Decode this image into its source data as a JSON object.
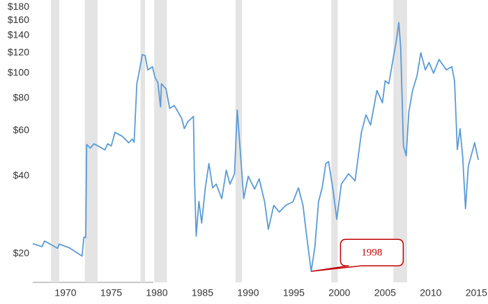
{
  "chart_data": {
    "type": "line",
    "log_scale_y": true,
    "grid": false,
    "xlim": [
      1967.6,
      2016.7
    ],
    "ylim": [
      15.5,
      192
    ],
    "xticks": [
      1970,
      1975,
      1980,
      1985,
      1990,
      1995,
      2000,
      2005,
      2010,
      2015
    ],
    "yticks": [
      {
        "value": 20,
        "label": "$20"
      },
      {
        "value": 40,
        "label": "$40"
      },
      {
        "value": 60,
        "label": "$60"
      },
      {
        "value": 80,
        "label": "$80"
      },
      {
        "value": 100,
        "label": "$100"
      },
      {
        "value": 120,
        "label": "$120"
      },
      {
        "value": 140,
        "label": "$140"
      },
      {
        "value": 160,
        "label": "$160"
      },
      {
        "value": 180,
        "label": "$180"
      }
    ],
    "shaded_periods": [
      [
        1969.6,
        1970.5
      ],
      [
        1973.3,
        1974.7
      ],
      [
        1979.4,
        1979.9
      ],
      [
        1980.9,
        1982.3
      ],
      [
        1989.8,
        1990.5
      ],
      [
        2000.3,
        2001.0
      ],
      [
        2007.1,
        2008.6
      ]
    ],
    "shade_color": "#e4e4e4",
    "annotation": {
      "text": "1998",
      "x": 1998.1,
      "y": 17.1,
      "color": "#c00000"
    },
    "series": [
      {
        "color": "#5b9bd5",
        "x": [
          1967.6,
          1968.6,
          1968.9,
          1969.7,
          1970.3,
          1970.5,
          1971.6,
          1973.0,
          1973.2,
          1973.4,
          1973.5,
          1973.9,
          1974.3,
          1975.5,
          1975.8,
          1976.2,
          1976.6,
          1977.4,
          1978.1,
          1978.5,
          1978.7,
          1979.0,
          1979.3,
          1979.6,
          1979.9,
          1980.2,
          1980.7,
          1981.0,
          1981.3,
          1981.6,
          1981.7,
          1982.2,
          1982.6,
          1983.1,
          1983.9,
          1984.2,
          1984.6,
          1985.2,
          1985.3,
          1985.5,
          1985.8,
          1986.1,
          1986.5,
          1986.9,
          1987.3,
          1987.7,
          1988.3,
          1988.8,
          1989.2,
          1989.7,
          1990.0,
          1990.4,
          1990.7,
          1991.2,
          1991.9,
          1992.4,
          1993.0,
          1993.4,
          1994.0,
          1994.6,
          1995.3,
          1996.1,
          1996.7,
          1997.2,
          1997.6,
          1998.1,
          1998.5,
          1998.9,
          1999.3,
          1999.7,
          2000.0,
          2000.5,
          2000.9,
          2001.4,
          2002.2,
          2002.9,
          2003.6,
          2004.1,
          2004.6,
          2005.3,
          2005.9,
          2006.2,
          2006.6,
          2007.0,
          2007.4,
          2007.7,
          2007.9,
          2008.2,
          2008.5,
          2008.8,
          2009.2,
          2009.7,
          2010.1,
          2010.6,
          2011.0,
          2011.5,
          2012.1,
          2012.9,
          2013.5,
          2013.8,
          2014.1,
          2014.4,
          2014.7,
          2015.0,
          2015.3,
          2016.0,
          2016.4
        ],
        "values": [
          21.9,
          21.3,
          22.4,
          21.6,
          21.0,
          21.8,
          21.1,
          19.6,
          23.2,
          23.1,
          53.0,
          51.3,
          53.3,
          50.5,
          53.3,
          52.3,
          59.0,
          57.0,
          53.8,
          55.6,
          54.0,
          91.1,
          103,
          118,
          117,
          103,
          106,
          96,
          92,
          74,
          91,
          87,
          73,
          75,
          67,
          61,
          65,
          68,
          40.8,
          23.4,
          31.9,
          26.3,
          36.0,
          44.7,
          36.0,
          37.2,
          32.7,
          42.1,
          37.2,
          40.8,
          72,
          46.2,
          32.7,
          39.9,
          35.6,
          39.0,
          31.8,
          24.9,
          30.8,
          29.0,
          30.8,
          31.8,
          36.0,
          30.8,
          23.4,
          17.1,
          21.3,
          31.8,
          36.0,
          44.7,
          45.5,
          35.2,
          27.2,
          37.2,
          40.8,
          38.3,
          59,
          69,
          63,
          85.7,
          76.8,
          93.5,
          91,
          110,
          132,
          157,
          125,
          52.3,
          47.9,
          71,
          85.7,
          98,
          120,
          103,
          110,
          100,
          113,
          103,
          106,
          93.5,
          50.6,
          61,
          47.1,
          29.9,
          43.6,
          53.8,
          46.2
        ]
      }
    ]
  }
}
